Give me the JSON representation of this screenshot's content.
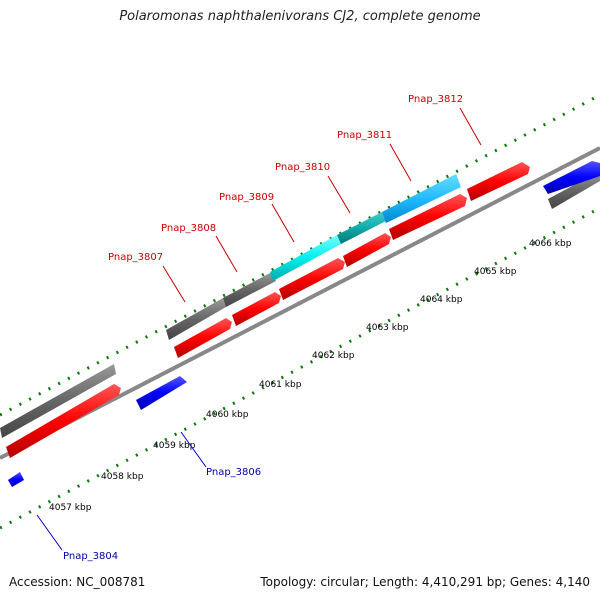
{
  "title": "Polaromonas naphthalenivorans CJ2, complete genome",
  "footer": {
    "accession": "Accession: NC_008781",
    "summary": "Topology: circular; Length: 4,410,291 bp; Genes: 4,140"
  },
  "colors": {
    "forward_gene": "#ff0000",
    "reverse_gene": "#0000ff",
    "other_gene": "#666666",
    "highlight_gene": "#00e0e0",
    "label_forward": "#cc0000",
    "label_reverse": "#0000aa",
    "tick": "#0a7a0a",
    "backbone": "#888888"
  },
  "kbp_ticks": [
    "4057 kbp",
    "4058 kbp",
    "4059 kbp",
    "4060 kbp",
    "4061 kbp",
    "4062 kbp",
    "4063 kbp",
    "4064 kbp",
    "4065 kbp",
    "4066 kbp"
  ],
  "gene_labels": [
    "Pnap_3804",
    "Pnap_3806",
    "Pnap_3807",
    "Pnap_3808",
    "Pnap_3809",
    "Pnap_3810",
    "Pnap_3811",
    "Pnap_3812"
  ]
}
